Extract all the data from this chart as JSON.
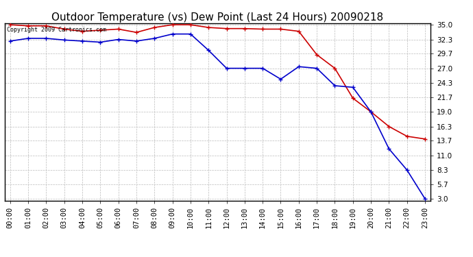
{
  "title": "Outdoor Temperature (vs) Dew Point (Last 24 Hours) 20090218",
  "copyright_text": "Copyright 2009 Cartronics.com",
  "x_labels": [
    "00:00",
    "01:00",
    "02:00",
    "03:00",
    "04:00",
    "05:00",
    "06:00",
    "07:00",
    "08:00",
    "09:00",
    "10:00",
    "11:00",
    "12:00",
    "13:00",
    "14:00",
    "15:00",
    "16:00",
    "17:00",
    "18:00",
    "19:00",
    "20:00",
    "21:00",
    "22:00",
    "23:00"
  ],
  "temp_data": [
    35.0,
    34.8,
    34.8,
    34.2,
    33.8,
    34.0,
    34.2,
    33.6,
    34.5,
    35.0,
    35.0,
    34.5,
    34.3,
    34.3,
    34.2,
    34.2,
    33.8,
    29.5,
    27.0,
    21.5,
    19.0,
    16.3,
    14.5,
    14.0
  ],
  "dew_data": [
    32.0,
    32.5,
    32.5,
    32.2,
    32.0,
    31.8,
    32.3,
    32.0,
    32.5,
    33.3,
    33.3,
    30.3,
    27.0,
    27.0,
    27.0,
    25.0,
    27.3,
    27.0,
    23.8,
    23.5,
    19.0,
    12.2,
    8.3,
    3.0
  ],
  "temp_color": "#cc0000",
  "dew_color": "#0000cc",
  "bg_color": "#ffffff",
  "grid_color": "#bbbbbb",
  "plot_bg_color": "#ffffff",
  "ylim_min": 3.0,
  "ylim_max": 35.0,
  "yticks": [
    3.0,
    5.7,
    8.3,
    11.0,
    13.7,
    16.3,
    19.0,
    21.7,
    24.3,
    27.0,
    29.7,
    32.3,
    35.0
  ],
  "marker": "+",
  "marker_size": 5,
  "linewidth": 1.2,
  "title_fontsize": 11,
  "tick_fontsize": 7.5,
  "copyright_fontsize": 6
}
